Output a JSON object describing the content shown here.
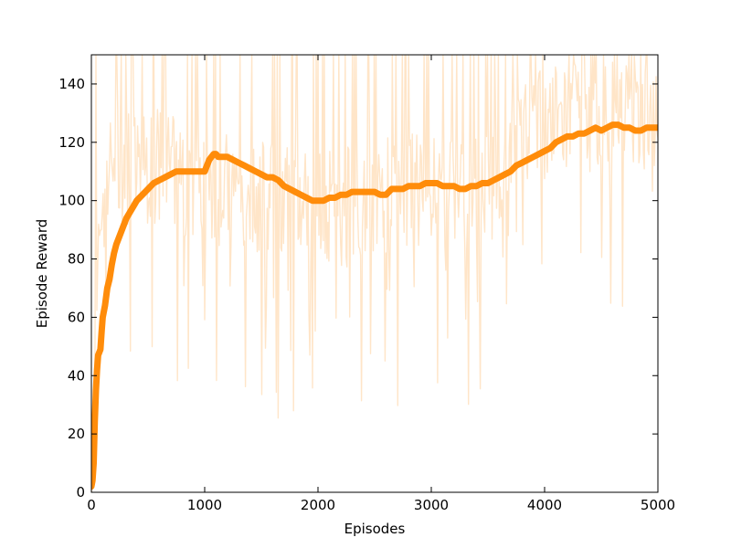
{
  "chart_data": {
    "type": "line",
    "title": "",
    "xlabel": "Episodes",
    "ylabel": "Episode Reward",
    "xlim": [
      0,
      5000
    ],
    "ylim": [
      0,
      150
    ],
    "xticks": [
      0,
      1000,
      2000,
      3000,
      4000,
      5000
    ],
    "yticks": [
      0,
      20,
      40,
      60,
      80,
      100,
      120,
      140
    ],
    "grid": false,
    "legend": "none",
    "series": [
      {
        "role": "raw episode reward",
        "color": "#ffe5c8",
        "noise_seed": 7,
        "anchors": {
          "x": [
            0,
            40,
            80,
            150,
            250,
            400,
            550,
            800,
            1000,
            1300,
            1600,
            1800,
            2000,
            2300,
            2600,
            3000,
            3300,
            3500,
            3700,
            4000,
            4300,
            4600,
            5000
          ],
          "y": [
            5,
            45,
            95,
            110,
            112,
            110,
            112,
            108,
            105,
            103,
            100,
            98,
            97,
            100,
            102,
            104,
            103,
            105,
            118,
            126,
            128,
            130,
            130
          ]
        }
      },
      {
        "role": "smoothed episode reward",
        "color": "#ff8c0a",
        "x": [
          0,
          10,
          20,
          30,
          40,
          50,
          60,
          70,
          80,
          90,
          100,
          120,
          140,
          160,
          180,
          200,
          220,
          250,
          280,
          310,
          340,
          370,
          400,
          450,
          500,
          550,
          600,
          650,
          700,
          750,
          800,
          850,
          900,
          950,
          1000,
          1020,
          1040,
          1060,
          1080,
          1100,
          1120,
          1150,
          1200,
          1250,
          1300,
          1350,
          1400,
          1450,
          1500,
          1550,
          1600,
          1650,
          1700,
          1750,
          1800,
          1850,
          1900,
          1950,
          2000,
          2050,
          2100,
          2150,
          2200,
          2250,
          2300,
          2350,
          2400,
          2450,
          2500,
          2550,
          2600,
          2650,
          2700,
          2750,
          2800,
          2850,
          2900,
          2950,
          3000,
          3050,
          3100,
          3150,
          3200,
          3250,
          3300,
          3350,
          3400,
          3450,
          3500,
          3550,
          3600,
          3650,
          3700,
          3750,
          3800,
          3850,
          3900,
          3950,
          4000,
          4050,
          4100,
          4150,
          4200,
          4250,
          4300,
          4350,
          4400,
          4450,
          4500,
          4550,
          4600,
          4650,
          4700,
          4750,
          4800,
          4850,
          4900,
          4950,
          5000
        ],
        "y": [
          2,
          4,
          10,
          24,
          35,
          42,
          47,
          48,
          49,
          55,
          60,
          64,
          70,
          73,
          78,
          82,
          85,
          88,
          91,
          94,
          96,
          98,
          100,
          102,
          104,
          106,
          107,
          108,
          109,
          110,
          110,
          110,
          110,
          110,
          110,
          112,
          114,
          115,
          116,
          116,
          115,
          115,
          115,
          114,
          113,
          112,
          111,
          110,
          109,
          108,
          108,
          107,
          105,
          104,
          103,
          102,
          101,
          100,
          100,
          100,
          101,
          101,
          102,
          102,
          103,
          103,
          103,
          103,
          103,
          102,
          102,
          104,
          104,
          104,
          105,
          105,
          105,
          106,
          106,
          106,
          105,
          105,
          105,
          104,
          104,
          105,
          105,
          106,
          106,
          107,
          108,
          109,
          110,
          112,
          113,
          114,
          115,
          116,
          117,
          118,
          120,
          121,
          122,
          122,
          123,
          123,
          124,
          125,
          124,
          125,
          126,
          126,
          125,
          125,
          124,
          124,
          125,
          125,
          125
        ]
      }
    ]
  }
}
